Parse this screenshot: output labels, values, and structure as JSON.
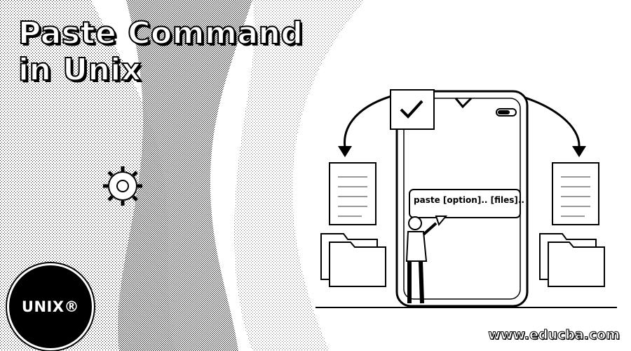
{
  "title": {
    "line1": "Paste Command",
    "line2": "in Unix"
  },
  "illustration": {
    "speech_bubble_text": "paste [option].. [files]..",
    "icons": [
      "smartphone-icon",
      "document-icon",
      "folder-icon",
      "gear-icon",
      "checkmark-icon",
      "curved-arrow-icon",
      "person-icon"
    ]
  },
  "logo": {
    "text": "UNIX®"
  },
  "footer": {
    "site": "www.educba.com"
  },
  "colors": {
    "background": "#ffffff",
    "ink": "#000000",
    "dither": "#9a9a9a"
  }
}
